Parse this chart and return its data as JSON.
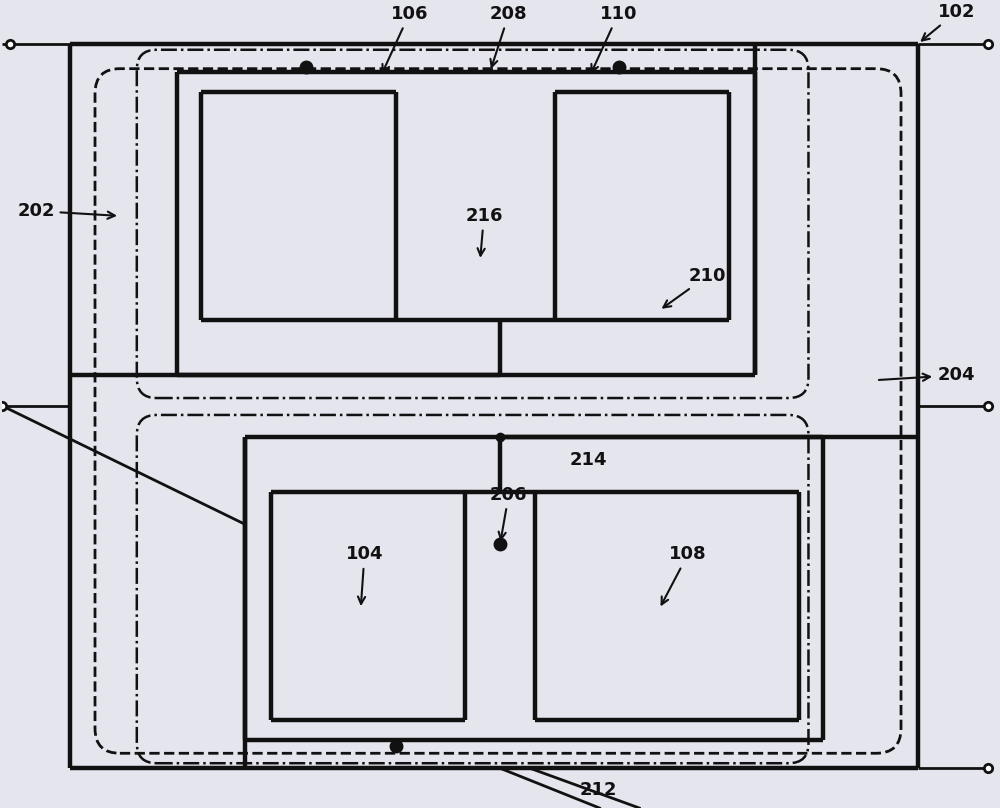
{
  "bg_color": "#e5e5ee",
  "line_color": "#111111",
  "lw_thick": 3.2,
  "lw_medium": 2.0,
  "lw_thin": 1.4,
  "fig_width": 10.0,
  "fig_height": 8.08,
  "dpi": 100
}
